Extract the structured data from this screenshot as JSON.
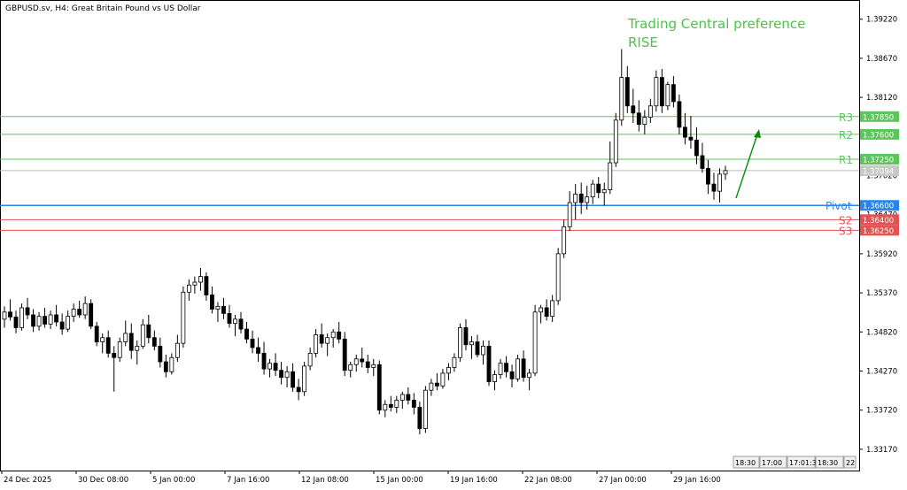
{
  "header": {
    "symbol_title": "GBPUSD.sv, H4:  Great Britain Pound vs US Dollar"
  },
  "annotation": {
    "line1": "Trading Central preference",
    "line2": "RISE",
    "color": "#4cc34c"
  },
  "colors": {
    "resistance": "#5cc65c",
    "pivot": "#2b84e8",
    "support": "#e05454",
    "current": "#bdbdbd",
    "arrow": "#0a8a0a",
    "candle_bull_fill": "#ffffff",
    "candle_bear_fill": "#000000"
  },
  "scroll_buttons": [
    "18:30",
    "17:00",
    "17:01:3",
    "18:30",
    "22"
  ],
  "chart_data": {
    "type": "candlestick",
    "title": "GBPUSD.sv, H4:  Great Britain Pound vs US Dollar",
    "ylim": [
      1.3287,
      1.3949
    ],
    "y_ticks": [
      "1.39220",
      "1.38670",
      "1.38120",
      "1.37020",
      "1.35920",
      "1.35370",
      "1.34820",
      "1.34270",
      "1.33720",
      "1.33170"
    ],
    "x_labels": [
      "24 Dec 2025",
      "30 Dec 08:00",
      "5 Jan 00:00",
      "7 Jan 16:00",
      "12 Jan 08:00",
      "15 Jan 00:00",
      "19 Jan 16:00",
      "22 Jan 08:00",
      "27 Jan 00:00",
      "29 Jan 16:00"
    ],
    "levels": [
      {
        "name": "R3",
        "value": 1.3785,
        "label": "1.37850",
        "kind": "resistance"
      },
      {
        "name": "R2",
        "value": 1.376,
        "label": "1.37600",
        "kind": "resistance"
      },
      {
        "name": "R1",
        "value": 1.3725,
        "label": "1.37250",
        "kind": "resistance"
      },
      {
        "name": "",
        "value": 1.3709,
        "label": "1.37094",
        "kind": "current"
      },
      {
        "name": "Pivot",
        "value": 1.366,
        "label": "1.36600",
        "kind": "pivot"
      },
      {
        "name": "S2",
        "value": 1.364,
        "label": "1.36400",
        "kind": "support"
      },
      {
        "name": "S3",
        "value": 1.3625,
        "label": "1.36250",
        "kind": "support"
      }
    ],
    "extra_tick_partial": "1.36470",
    "ohlc": [
      [
        1.35,
        1.3518,
        1.3488,
        1.351
      ],
      [
        1.351,
        1.3528,
        1.3498,
        1.3503
      ],
      [
        1.3503,
        1.3512,
        1.348,
        1.3488
      ],
      [
        1.3488,
        1.3522,
        1.3484,
        1.3516
      ],
      [
        1.3516,
        1.353,
        1.35,
        1.3506
      ],
      [
        1.3506,
        1.3514,
        1.3482,
        1.349
      ],
      [
        1.349,
        1.351,
        1.3484,
        1.3504
      ],
      [
        1.3504,
        1.3516,
        1.3488,
        1.3493
      ],
      [
        1.3493,
        1.3512,
        1.3486,
        1.3506
      ],
      [
        1.3506,
        1.352,
        1.349,
        1.3496
      ],
      [
        1.3496,
        1.3508,
        1.3478,
        1.3486
      ],
      [
        1.3486,
        1.3512,
        1.3482,
        1.3504
      ],
      [
        1.3504,
        1.3522,
        1.3496,
        1.3514
      ],
      [
        1.3514,
        1.3526,
        1.3502,
        1.3506
      ],
      [
        1.3506,
        1.3532,
        1.35,
        1.3522
      ],
      [
        1.3522,
        1.3528,
        1.3486,
        1.349
      ],
      [
        1.349,
        1.3496,
        1.3462,
        1.3468
      ],
      [
        1.3468,
        1.348,
        1.3452,
        1.3474
      ],
      [
        1.3474,
        1.3484,
        1.3446,
        1.3452
      ],
      [
        1.3452,
        1.3462,
        1.3398,
        1.3446
      ],
      [
        1.3446,
        1.3474,
        1.344,
        1.3468
      ],
      [
        1.3468,
        1.3498,
        1.3462,
        1.348
      ],
      [
        1.348,
        1.3494,
        1.3444,
        1.3456
      ],
      [
        1.3456,
        1.347,
        1.3436,
        1.3462
      ],
      [
        1.3462,
        1.35,
        1.3458,
        1.3492
      ],
      [
        1.3492,
        1.3506,
        1.3466,
        1.3474
      ],
      [
        1.3474,
        1.3484,
        1.3456,
        1.3462
      ],
      [
        1.3462,
        1.3474,
        1.3432,
        1.344
      ],
      [
        1.344,
        1.345,
        1.3418,
        1.3426
      ],
      [
        1.3426,
        1.3452,
        1.3422,
        1.3446
      ],
      [
        1.3446,
        1.3478,
        1.344,
        1.3466
      ],
      [
        1.3466,
        1.3546,
        1.346,
        1.3538
      ],
      [
        1.3538,
        1.3556,
        1.3526,
        1.3548
      ],
      [
        1.3548,
        1.356,
        1.3536,
        1.3552
      ],
      [
        1.3552,
        1.3572,
        1.354,
        1.356
      ],
      [
        1.356,
        1.3566,
        1.3526,
        1.3534
      ],
      [
        1.3534,
        1.3546,
        1.3508,
        1.3514
      ],
      [
        1.3514,
        1.3524,
        1.3496,
        1.3518
      ],
      [
        1.3518,
        1.353,
        1.35,
        1.3508
      ],
      [
        1.3508,
        1.352,
        1.3488,
        1.3494
      ],
      [
        1.3494,
        1.3506,
        1.3476,
        1.35
      ],
      [
        1.35,
        1.351,
        1.348,
        1.3486
      ],
      [
        1.3486,
        1.3496,
        1.3466,
        1.3472
      ],
      [
        1.3472,
        1.3484,
        1.3452,
        1.346
      ],
      [
        1.346,
        1.3474,
        1.344,
        1.3452
      ],
      [
        1.3452,
        1.3468,
        1.3422,
        1.343
      ],
      [
        1.343,
        1.3444,
        1.3418,
        1.3438
      ],
      [
        1.3438,
        1.3452,
        1.342,
        1.3428
      ],
      [
        1.3428,
        1.344,
        1.3408,
        1.3418
      ],
      [
        1.3418,
        1.3434,
        1.3404,
        1.3426
      ],
      [
        1.3426,
        1.3438,
        1.3398,
        1.3404
      ],
      [
        1.3404,
        1.3416,
        1.3386,
        1.3398
      ],
      [
        1.3398,
        1.344,
        1.3392,
        1.3434
      ],
      [
        1.3434,
        1.346,
        1.3428,
        1.3452
      ],
      [
        1.3452,
        1.3486,
        1.3446,
        1.3478
      ],
      [
        1.3478,
        1.3494,
        1.346,
        1.3466
      ],
      [
        1.3466,
        1.348,
        1.3448,
        1.3474
      ],
      [
        1.3474,
        1.3486,
        1.346,
        1.3482
      ],
      [
        1.3482,
        1.3496,
        1.3466,
        1.3472
      ],
      [
        1.3472,
        1.3482,
        1.342,
        1.3428
      ],
      [
        1.3428,
        1.344,
        1.3418,
        1.3436
      ],
      [
        1.3436,
        1.345,
        1.3426,
        1.3444
      ],
      [
        1.3444,
        1.346,
        1.3432,
        1.344
      ],
      [
        1.344,
        1.345,
        1.3424,
        1.3432
      ],
      [
        1.3432,
        1.3444,
        1.342,
        1.3436
      ],
      [
        1.3436,
        1.3442,
        1.3366,
        1.3372
      ],
      [
        1.3372,
        1.3386,
        1.3362,
        1.338
      ],
      [
        1.338,
        1.3392,
        1.337,
        1.3376
      ],
      [
        1.3376,
        1.3392,
        1.3368,
        1.3386
      ],
      [
        1.3386,
        1.3398,
        1.3374,
        1.3394
      ],
      [
        1.3394,
        1.3404,
        1.338,
        1.3386
      ],
      [
        1.3386,
        1.3396,
        1.3366,
        1.3376
      ],
      [
        1.3376,
        1.3384,
        1.3338,
        1.3346
      ],
      [
        1.3346,
        1.3406,
        1.334,
        1.34
      ],
      [
        1.34,
        1.3416,
        1.3392,
        1.341
      ],
      [
        1.341,
        1.3424,
        1.34,
        1.3406
      ],
      [
        1.3406,
        1.343,
        1.3402,
        1.3424
      ],
      [
        1.3424,
        1.3438,
        1.3414,
        1.3432
      ],
      [
        1.3432,
        1.3452,
        1.3426,
        1.3446
      ],
      [
        1.3446,
        1.3494,
        1.344,
        1.3488
      ],
      [
        1.3488,
        1.35,
        1.3456,
        1.3464
      ],
      [
        1.3464,
        1.3476,
        1.3444,
        1.3468
      ],
      [
        1.3468,
        1.3478,
        1.3446,
        1.345
      ],
      [
        1.345,
        1.347,
        1.3436,
        1.3462
      ],
      [
        1.3462,
        1.347,
        1.3406,
        1.3412
      ],
      [
        1.3412,
        1.3428,
        1.34,
        1.3422
      ],
      [
        1.3422,
        1.3444,
        1.3416,
        1.3438
      ],
      [
        1.3438,
        1.3448,
        1.3418,
        1.3426
      ],
      [
        1.3426,
        1.3436,
        1.3404,
        1.3416
      ],
      [
        1.3416,
        1.345,
        1.3412,
        1.3444
      ],
      [
        1.3444,
        1.3456,
        1.3412,
        1.3418
      ],
      [
        1.3418,
        1.343,
        1.34,
        1.3424
      ],
      [
        1.3424,
        1.352,
        1.342,
        1.351
      ],
      [
        1.351,
        1.352,
        1.3494,
        1.3516
      ],
      [
        1.3516,
        1.3528,
        1.3498,
        1.3504
      ],
      [
        1.3504,
        1.3534,
        1.3496,
        1.3526
      ],
      [
        1.3526,
        1.36,
        1.352,
        1.3592
      ],
      [
        1.3592,
        1.364,
        1.3586,
        1.363
      ],
      [
        1.363,
        1.368,
        1.3624,
        1.3664
      ],
      [
        1.3664,
        1.369,
        1.364,
        1.3676
      ],
      [
        1.3676,
        1.3692,
        1.3648,
        1.3664
      ],
      [
        1.3664,
        1.3688,
        1.3654,
        1.3672
      ],
      [
        1.3672,
        1.3696,
        1.3662,
        1.369
      ],
      [
        1.369,
        1.37,
        1.367,
        1.3678
      ],
      [
        1.3678,
        1.3692,
        1.366,
        1.3682
      ],
      [
        1.3682,
        1.375,
        1.3676,
        1.372
      ],
      [
        1.372,
        1.379,
        1.3714,
        1.378
      ],
      [
        1.378,
        1.388,
        1.3772,
        1.384
      ],
      [
        1.384,
        1.3856,
        1.379,
        1.38
      ],
      [
        1.38,
        1.3824,
        1.3776,
        1.379
      ],
      [
        1.379,
        1.3808,
        1.3764,
        1.3774
      ],
      [
        1.3774,
        1.3794,
        1.376,
        1.3784
      ],
      [
        1.3784,
        1.381,
        1.3776,
        1.38
      ],
      [
        1.38,
        1.385,
        1.3792,
        1.384
      ],
      [
        1.384,
        1.3852,
        1.379,
        1.38
      ],
      [
        1.38,
        1.3834,
        1.3794,
        1.383
      ],
      [
        1.383,
        1.3842,
        1.3798,
        1.3806
      ],
      [
        1.3806,
        1.3816,
        1.376,
        1.377
      ],
      [
        1.377,
        1.379,
        1.3746,
        1.3756
      ],
      [
        1.3756,
        1.3786,
        1.374,
        1.3752
      ],
      [
        1.3752,
        1.377,
        1.3718,
        1.373
      ],
      [
        1.373,
        1.3748,
        1.3706,
        1.3712
      ],
      [
        1.3712,
        1.3724,
        1.3676,
        1.369
      ],
      [
        1.369,
        1.3706,
        1.3668,
        1.368
      ],
      [
        1.368,
        1.3712,
        1.3664,
        1.3704
      ],
      [
        1.3704,
        1.3716,
        1.3696,
        1.3709
      ]
    ]
  }
}
